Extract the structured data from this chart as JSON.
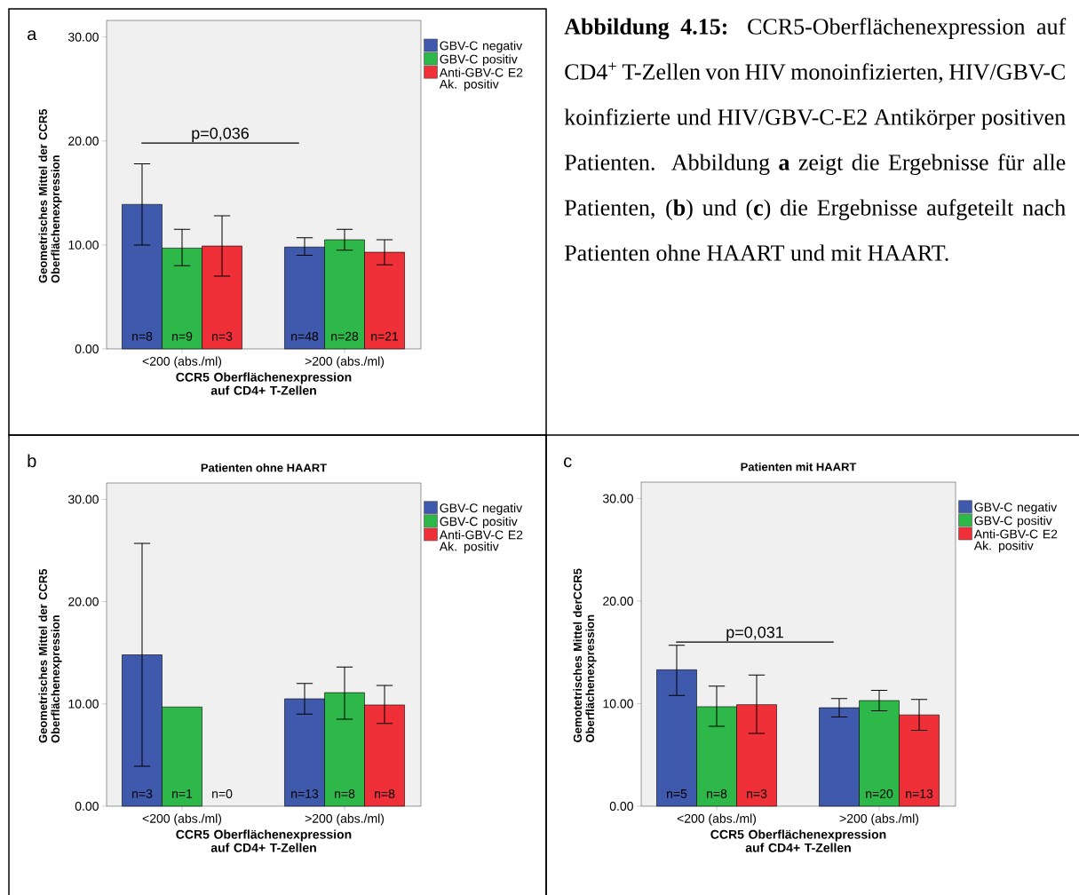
{
  "chart_data": [
    {
      "type": "bar",
      "xlabel": "CCR5 Oberflächenexpression auf CD4+ T-Zellen",
      "ylabel": "Geometrisches Mittel der CCR5 Oberflächenexpression",
      "categories": [
        "<200 (abs./ml)",
        ">200 (abs./ml)"
      ],
      "series": [
        {
          "name": "GBV-C negativ",
          "color": "#3f59ad",
          "values": [
            13.9,
            9.8
          ],
          "errors": [
            [
              10.0,
              17.8
            ],
            [
              9.0,
              10.7
            ]
          ]
        },
        {
          "name": "GBV-C positiv",
          "color": "#2fb84a",
          "values": [
            9.7,
            10.5
          ],
          "errors": [
            [
              8.0,
              11.5
            ],
            [
              9.5,
              11.5
            ]
          ]
        },
        {
          "name": "Anti-GBV-C E2 Ak. positiv",
          "color": "#ef3038",
          "values": [
            9.9,
            9.3
          ],
          "errors": [
            [
              7.0,
              12.8
            ],
            [
              8.1,
              10.5
            ]
          ]
        }
      ],
      "ylim": [
        0,
        31.6
      ],
      "yticks": [
        {
          "value": 0,
          "label": "0.00"
        },
        {
          "value": 10,
          "label": "10.00"
        },
        {
          "value": 20,
          "label": "20.00"
        },
        {
          "value": 30,
          "label": "30.00"
        }
      ],
      "legend": "right",
      "ref_lines": [
        {
          "axis": "y",
          "value": 19.8
        }
      ],
      "annotations": [
        "a",
        "p=0,036",
        "n=8",
        "n=9",
        "n=3",
        "n=48",
        "n=28",
        "n=21"
      ]
    },
    {
      "type": "bar",
      "title": "Patienten ohne HAART",
      "xlabel": "CCR5 Oberflächenexpression auf CD4+ T-Zellen",
      "ylabel": "Geometrisches Mittel der CCR5 Oberflächenexpression",
      "categories": [
        "<200 (abs./ml)",
        ">200 (abs./ml)"
      ],
      "series": [
        {
          "name": "GBV-C negativ",
          "color": "#3f59ad",
          "values": [
            14.8,
            10.5
          ],
          "errors": [
            [
              3.9,
              25.7
            ],
            [
              9.0,
              12.0
            ]
          ]
        },
        {
          "name": "GBV-C positiv",
          "color": "#2fb84a",
          "values": [
            9.7,
            11.1
          ],
          "errors": [
            null,
            [
              8.5,
              13.6
            ]
          ]
        },
        {
          "name": "Anti-GBV-C E2 Ak. positiv",
          "color": "#ef3038",
          "values": [
            null,
            9.9
          ],
          "errors": [
            null,
            [
              8.1,
              11.8
            ]
          ]
        }
      ],
      "ylim": [
        0,
        31.6
      ],
      "yticks": [
        {
          "value": 0,
          "label": "0.00"
        },
        {
          "value": 10,
          "label": "10.00"
        },
        {
          "value": 20,
          "label": "20.00"
        },
        {
          "value": 30,
          "label": "30.00"
        }
      ],
      "legend": "right",
      "annotations": [
        "b",
        "n=3",
        "n=1",
        "n=0",
        "n=13",
        "n=8",
        "n=8"
      ]
    },
    {
      "type": "bar",
      "title": "Patienten mit HAART",
      "xlabel": "CCR5 Oberflächenexpression auf CD4+ T-Zellen",
      "ylabel": "Gemotetrisches Mittel derCCR5 Oberflächenexpression",
      "categories": [
        "<200 (abs./ml)",
        ">200 (abs./ml)"
      ],
      "series": [
        {
          "name": "GBV-C negativ",
          "color": "#3f59ad",
          "values": [
            13.3,
            9.6
          ],
          "errors": [
            [
              10.8,
              15.7
            ],
            [
              8.7,
              10.5
            ]
          ]
        },
        {
          "name": "GBV-C positiv",
          "color": "#2fb84a",
          "values": [
            9.7,
            10.3
          ],
          "errors": [
            [
              7.8,
              11.7
            ],
            [
              9.3,
              11.3
            ]
          ]
        },
        {
          "name": "Anti-GBV-C E2 Ak. positiv",
          "color": "#ef3038",
          "values": [
            9.9,
            8.9
          ],
          "errors": [
            [
              7.1,
              12.8
            ],
            [
              7.4,
              10.4
            ]
          ]
        }
      ],
      "ylim": [
        0,
        31.6
      ],
      "yticks": [
        {
          "value": 0,
          "label": "0.00"
        },
        {
          "value": 10,
          "label": "10.00"
        },
        {
          "value": 20,
          "label": "20.00"
        },
        {
          "value": 30,
          "label": "30.00"
        }
      ],
      "legend": "right",
      "ref_lines": [
        {
          "axis": "y",
          "value": 16.0
        }
      ],
      "annotations": [
        "c",
        "p=0,031",
        "n=5",
        "n=8",
        "n=3",
        "n=20",
        "n=13"
      ]
    },
    {
      "type": "other",
      "annotations": [
        "**Abbildung 4.15:** CCR5-Oberflächenexpression auf CD4$^{+}$ T-Zellen von HIV monoinfizierten, HIV/GBV-C koinfizierte und HIV/GBV-C-E2 Antikörper positiven Patienten. Abbildung **a** zeigt die Ergebnisse für alle Patienten, (**b**) und (**c**) die Ergebnisse aufgeteilt nach Patienten ohne HAART und mit HAART."
      ]
    }
  ]
}
